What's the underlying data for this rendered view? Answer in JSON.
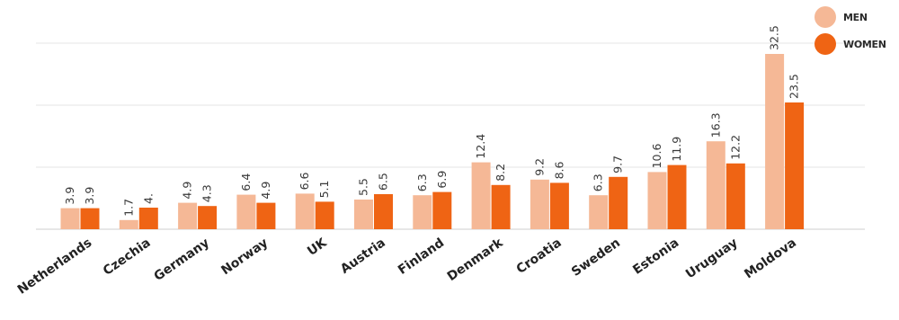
{
  "chart_data": {
    "type": "bar",
    "categories": [
      "Netherlands",
      "Czechia",
      "Germany",
      "Norway",
      "UK",
      "Austria",
      "Finland",
      "Denmark",
      "Croatia",
      "Sweden",
      "Estonia",
      "Uruguay",
      "Moldova"
    ],
    "series": [
      {
        "name": "MEN",
        "values": [
          3.9,
          1.7,
          4.9,
          6.4,
          6.6,
          5.5,
          6.3,
          12.4,
          9.2,
          6.3,
          10.6,
          16.3,
          32.5
        ],
        "labels": [
          "3.9",
          "1.7",
          "4.9",
          "6.4",
          "6.6",
          "5.5",
          "6.3",
          "12.4",
          "9.2",
          "6.3",
          "10.6",
          "16.3",
          "32.5"
        ],
        "color": "#f5b896"
      },
      {
        "name": "WOMEN",
        "values": [
          3.9,
          4.0,
          4.3,
          4.9,
          5.1,
          6.5,
          6.9,
          8.2,
          8.6,
          9.7,
          11.9,
          12.2,
          23.5
        ],
        "labels": [
          "3.9",
          "4.",
          "4.3",
          "4.9",
          "5.1",
          "6.5",
          "6.9",
          "8.2",
          "8.6",
          "9.7",
          "11.9",
          "12.2",
          "23.5"
        ],
        "color": "#ef6414"
      }
    ],
    "ylim": [
      0,
      33
    ],
    "grid": true,
    "legend_position": "top-right"
  }
}
